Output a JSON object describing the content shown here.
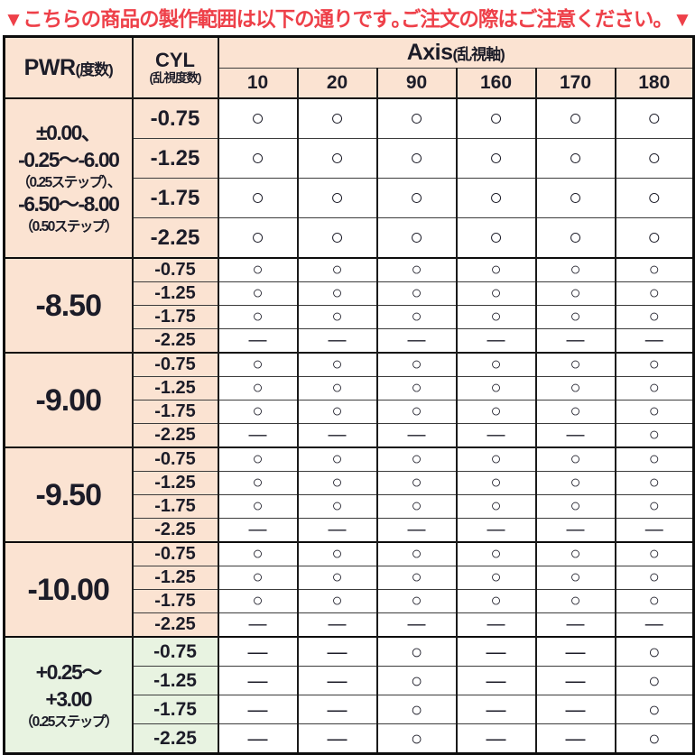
{
  "page": {
    "title": "▼こちらの商品の製作範囲は以下の通りです｡ご注文の際はご注意ください。▼"
  },
  "colors": {
    "accent_red": "#ee4049",
    "header_peach": "#fbe3d2",
    "plus_power_green": "#e8f3e1",
    "border_black": "#0d0d0d",
    "cell_white": "#ffffff"
  },
  "symbols": {
    "available": "○",
    "unavailable": "—"
  },
  "table": {
    "headers": {
      "pwr_main": "PWR",
      "pwr_sub": "(度数)",
      "cyl_main": "CYL",
      "cyl_sub": "(乱視度数)",
      "axis_main": "Axis",
      "axis_sub": "(乱視軸)",
      "axis_values": [
        "10",
        "20",
        "90",
        "160",
        "170",
        "180"
      ]
    },
    "groups": [
      {
        "size": "lg",
        "tint": "peach",
        "pwr_lines": [
          {
            "text": "±0.00、",
            "style": "big"
          },
          {
            "text": "-0.25～-6.00",
            "style": "big"
          },
          {
            "text": "（0.25ステップ）、",
            "style": "small"
          },
          {
            "text": "-6.50～-8.00",
            "style": "big"
          },
          {
            "text": "（0.50ステップ）",
            "style": "small"
          }
        ],
        "rows": [
          {
            "cyl": "-0.75",
            "cells": [
              "○",
              "○",
              "○",
              "○",
              "○",
              "○"
            ]
          },
          {
            "cyl": "-1.25",
            "cells": [
              "○",
              "○",
              "○",
              "○",
              "○",
              "○"
            ]
          },
          {
            "cyl": "-1.75",
            "cells": [
              "○",
              "○",
              "○",
              "○",
              "○",
              "○"
            ]
          },
          {
            "cyl": "-2.25",
            "cells": [
              "○",
              "○",
              "○",
              "○",
              "○",
              "○"
            ]
          }
        ]
      },
      {
        "size": "sm",
        "tint": "peach",
        "pwr_lines": [
          {
            "text": "-8.50",
            "style": "xl"
          }
        ],
        "rows": [
          {
            "cyl": "-0.75",
            "cells": [
              "○",
              "○",
              "○",
              "○",
              "○",
              "○"
            ]
          },
          {
            "cyl": "-1.25",
            "cells": [
              "○",
              "○",
              "○",
              "○",
              "○",
              "○"
            ]
          },
          {
            "cyl": "-1.75",
            "cells": [
              "○",
              "○",
              "○",
              "○",
              "○",
              "○"
            ]
          },
          {
            "cyl": "-2.25",
            "cells": [
              "—",
              "—",
              "—",
              "—",
              "—",
              "—"
            ]
          }
        ]
      },
      {
        "size": "sm",
        "tint": "peach",
        "pwr_lines": [
          {
            "text": "-9.00",
            "style": "xl"
          }
        ],
        "rows": [
          {
            "cyl": "-0.75",
            "cells": [
              "○",
              "○",
              "○",
              "○",
              "○",
              "○"
            ]
          },
          {
            "cyl": "-1.25",
            "cells": [
              "○",
              "○",
              "○",
              "○",
              "○",
              "○"
            ]
          },
          {
            "cyl": "-1.75",
            "cells": [
              "○",
              "○",
              "○",
              "○",
              "○",
              "○"
            ]
          },
          {
            "cyl": "-2.25",
            "cells": [
              "—",
              "—",
              "—",
              "—",
              "—",
              "○"
            ]
          }
        ]
      },
      {
        "size": "sm",
        "tint": "peach",
        "pwr_lines": [
          {
            "text": "-9.50",
            "style": "xl"
          }
        ],
        "rows": [
          {
            "cyl": "-0.75",
            "cells": [
              "○",
              "○",
              "○",
              "○",
              "○",
              "○"
            ]
          },
          {
            "cyl": "-1.25",
            "cells": [
              "○",
              "○",
              "○",
              "○",
              "○",
              "○"
            ]
          },
          {
            "cyl": "-1.75",
            "cells": [
              "○",
              "○",
              "○",
              "○",
              "○",
              "○"
            ]
          },
          {
            "cyl": "-2.25",
            "cells": [
              "—",
              "—",
              "—",
              "—",
              "—",
              "—"
            ]
          }
        ]
      },
      {
        "size": "sm",
        "tint": "peach",
        "pwr_lines": [
          {
            "text": "-10.00",
            "style": "xl"
          }
        ],
        "rows": [
          {
            "cyl": "-0.75",
            "cells": [
              "○",
              "○",
              "○",
              "○",
              "○",
              "○"
            ]
          },
          {
            "cyl": "-1.25",
            "cells": [
              "○",
              "○",
              "○",
              "○",
              "○",
              "○"
            ]
          },
          {
            "cyl": "-1.75",
            "cells": [
              "○",
              "○",
              "○",
              "○",
              "○",
              "○"
            ]
          },
          {
            "cyl": "-2.25",
            "cells": [
              "—",
              "—",
              "—",
              "—",
              "—",
              "—"
            ]
          }
        ]
      },
      {
        "size": "md",
        "tint": "green",
        "pwr_lines": [
          {
            "text": "+0.25～",
            "style": "big"
          },
          {
            "text": "+3.00",
            "style": "big"
          },
          {
            "text": "（0.25ステップ）",
            "style": "small"
          }
        ],
        "rows": [
          {
            "cyl": "-0.75",
            "cells": [
              "—",
              "—",
              "○",
              "—",
              "—",
              "○"
            ]
          },
          {
            "cyl": "-1.25",
            "cells": [
              "—",
              "—",
              "○",
              "—",
              "—",
              "○"
            ]
          },
          {
            "cyl": "-1.75",
            "cells": [
              "—",
              "—",
              "○",
              "—",
              "—",
              "○"
            ]
          },
          {
            "cyl": "-2.25",
            "cells": [
              "—",
              "—",
              "○",
              "—",
              "—",
              "○"
            ]
          }
        ]
      }
    ]
  }
}
